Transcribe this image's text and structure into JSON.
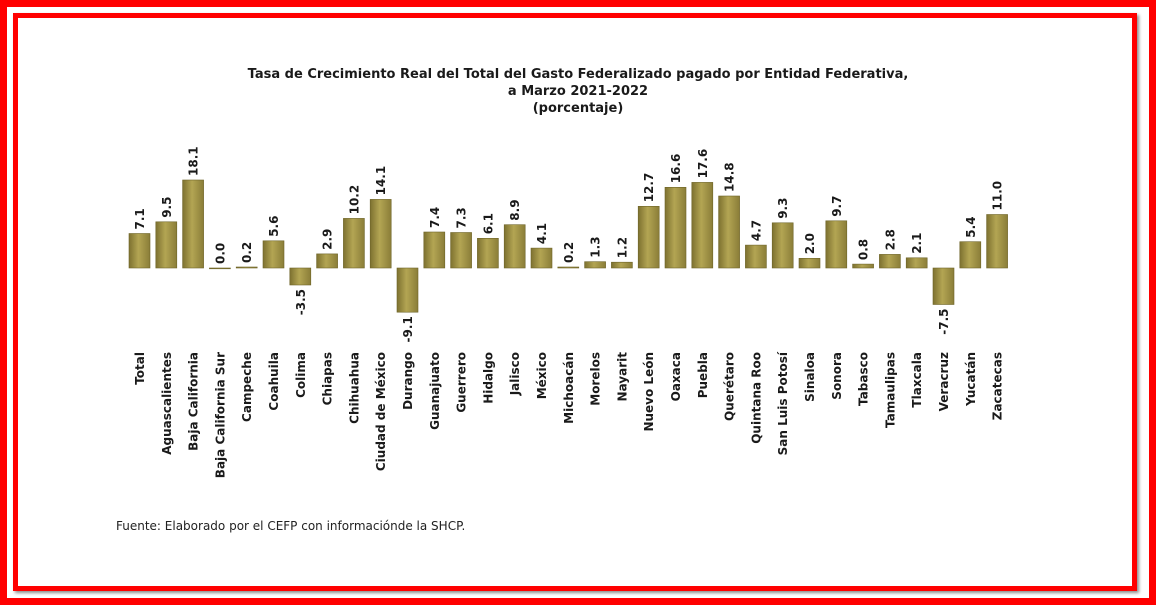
{
  "chart_data": {
    "type": "bar",
    "title": [
      "Tasa de Crecimiento Real del Total del Gasto Federalizado pagado por Entidad Federativa,",
      "a Marzo 2021-2022",
      "(porcentaje)"
    ],
    "categories": [
      "Total",
      "Aguascalientes",
      "Baja California",
      "Baja California Sur",
      "Campeche",
      "Coahuila",
      "Colima",
      "Chiapas",
      "Chihuahua",
      "Ciudad de México",
      "Durango",
      "Guanajuato",
      "Guerrero",
      "Hidalgo",
      "Jalisco",
      "México",
      "Michoacán",
      "Morelos",
      "Nayarit",
      "Nuevo León",
      "Oaxaca",
      "Puebla",
      "Querétaro",
      "Quintana Roo",
      "San Luis Potosí",
      "Sinaloa",
      "Sonora",
      "Tabasco",
      "Tamaulipas",
      "Tlaxcala",
      "Veracruz",
      "Yucatán",
      "Zacatecas"
    ],
    "values": [
      7.1,
      9.5,
      18.1,
      0.0,
      0.2,
      5.6,
      -3.5,
      2.9,
      10.2,
      14.1,
      -9.1,
      7.4,
      7.3,
      6.1,
      8.9,
      4.1,
      0.2,
      1.3,
      1.2,
      12.7,
      16.6,
      17.6,
      14.8,
      4.7,
      9.3,
      2.0,
      9.7,
      0.8,
      2.8,
      2.1,
      -7.5,
      5.4,
      11.0
    ],
    "labels": [
      "7.1",
      "9.5",
      "18.1",
      "0.0",
      "0.2",
      "5.6",
      "-3.5",
      "2.9",
      "10.2",
      "14.1",
      "-9.1",
      "7.4",
      "7.3",
      "6.1",
      "8.9",
      "4.1",
      "0.2",
      "1.3",
      "1.2",
      "12.7",
      "16.6",
      "17.6",
      "14.8",
      "4.7",
      "9.3",
      "2.0",
      "9.7",
      "0.8",
      "2.8",
      "2.1",
      "-7.5",
      "5.4",
      "11.0"
    ],
    "bar_color": "#a89a48",
    "grid": false,
    "legend": "none"
  },
  "source_note": "Fuente: Elaborado por el CEFP con informaciónde la SHCP.",
  "colors": {
    "frame": "#ff0000",
    "text": "#1a1a1a"
  }
}
